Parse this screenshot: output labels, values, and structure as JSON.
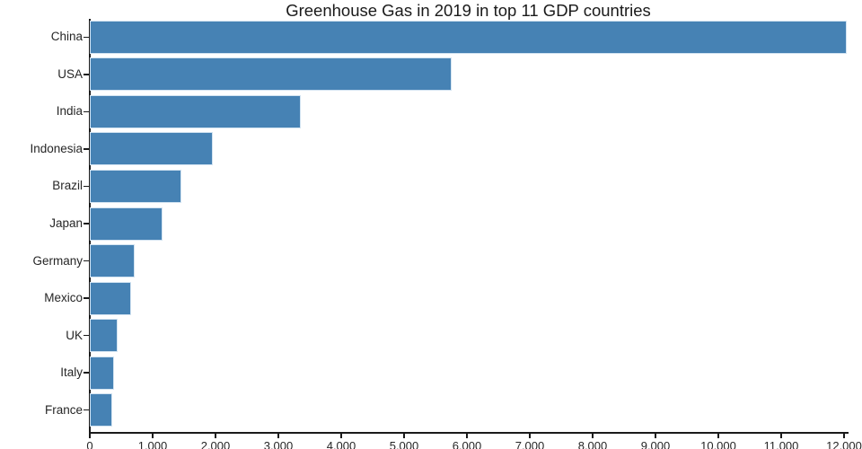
{
  "chart_data": {
    "type": "bar",
    "orientation": "horizontal",
    "title": "Greenhouse Gas in 2019 in top 11 GDP countries",
    "categories": [
      "China",
      "USA",
      "India",
      "Indonesia",
      "Brazil",
      "Japan",
      "Germany",
      "Mexico",
      "UK",
      "Italy",
      "France"
    ],
    "values": [
      12040,
      5755,
      3360,
      1960,
      1455,
      1150,
      715,
      660,
      440,
      380,
      350
    ],
    "xlabel": "",
    "ylabel": "",
    "xlim": [
      0,
      12000
    ],
    "x_ticks": [
      0,
      1000,
      2000,
      3000,
      4000,
      5000,
      6000,
      7000,
      8000,
      9000,
      10000,
      11000,
      12000
    ],
    "x_tick_labels": [
      "0",
      "1.000",
      "2.000",
      "3.000",
      "4.000",
      "5.000",
      "6.000",
      "7.000",
      "8.000",
      "9.000",
      "10.000",
      "11.000",
      "12.000"
    ],
    "grid": false,
    "colors": {
      "bar_fill": "#4682b4",
      "bar_edge": "#d2e3f1",
      "axis": "#1a1a1a",
      "text": "#262626",
      "background": "#ffffff"
    }
  }
}
